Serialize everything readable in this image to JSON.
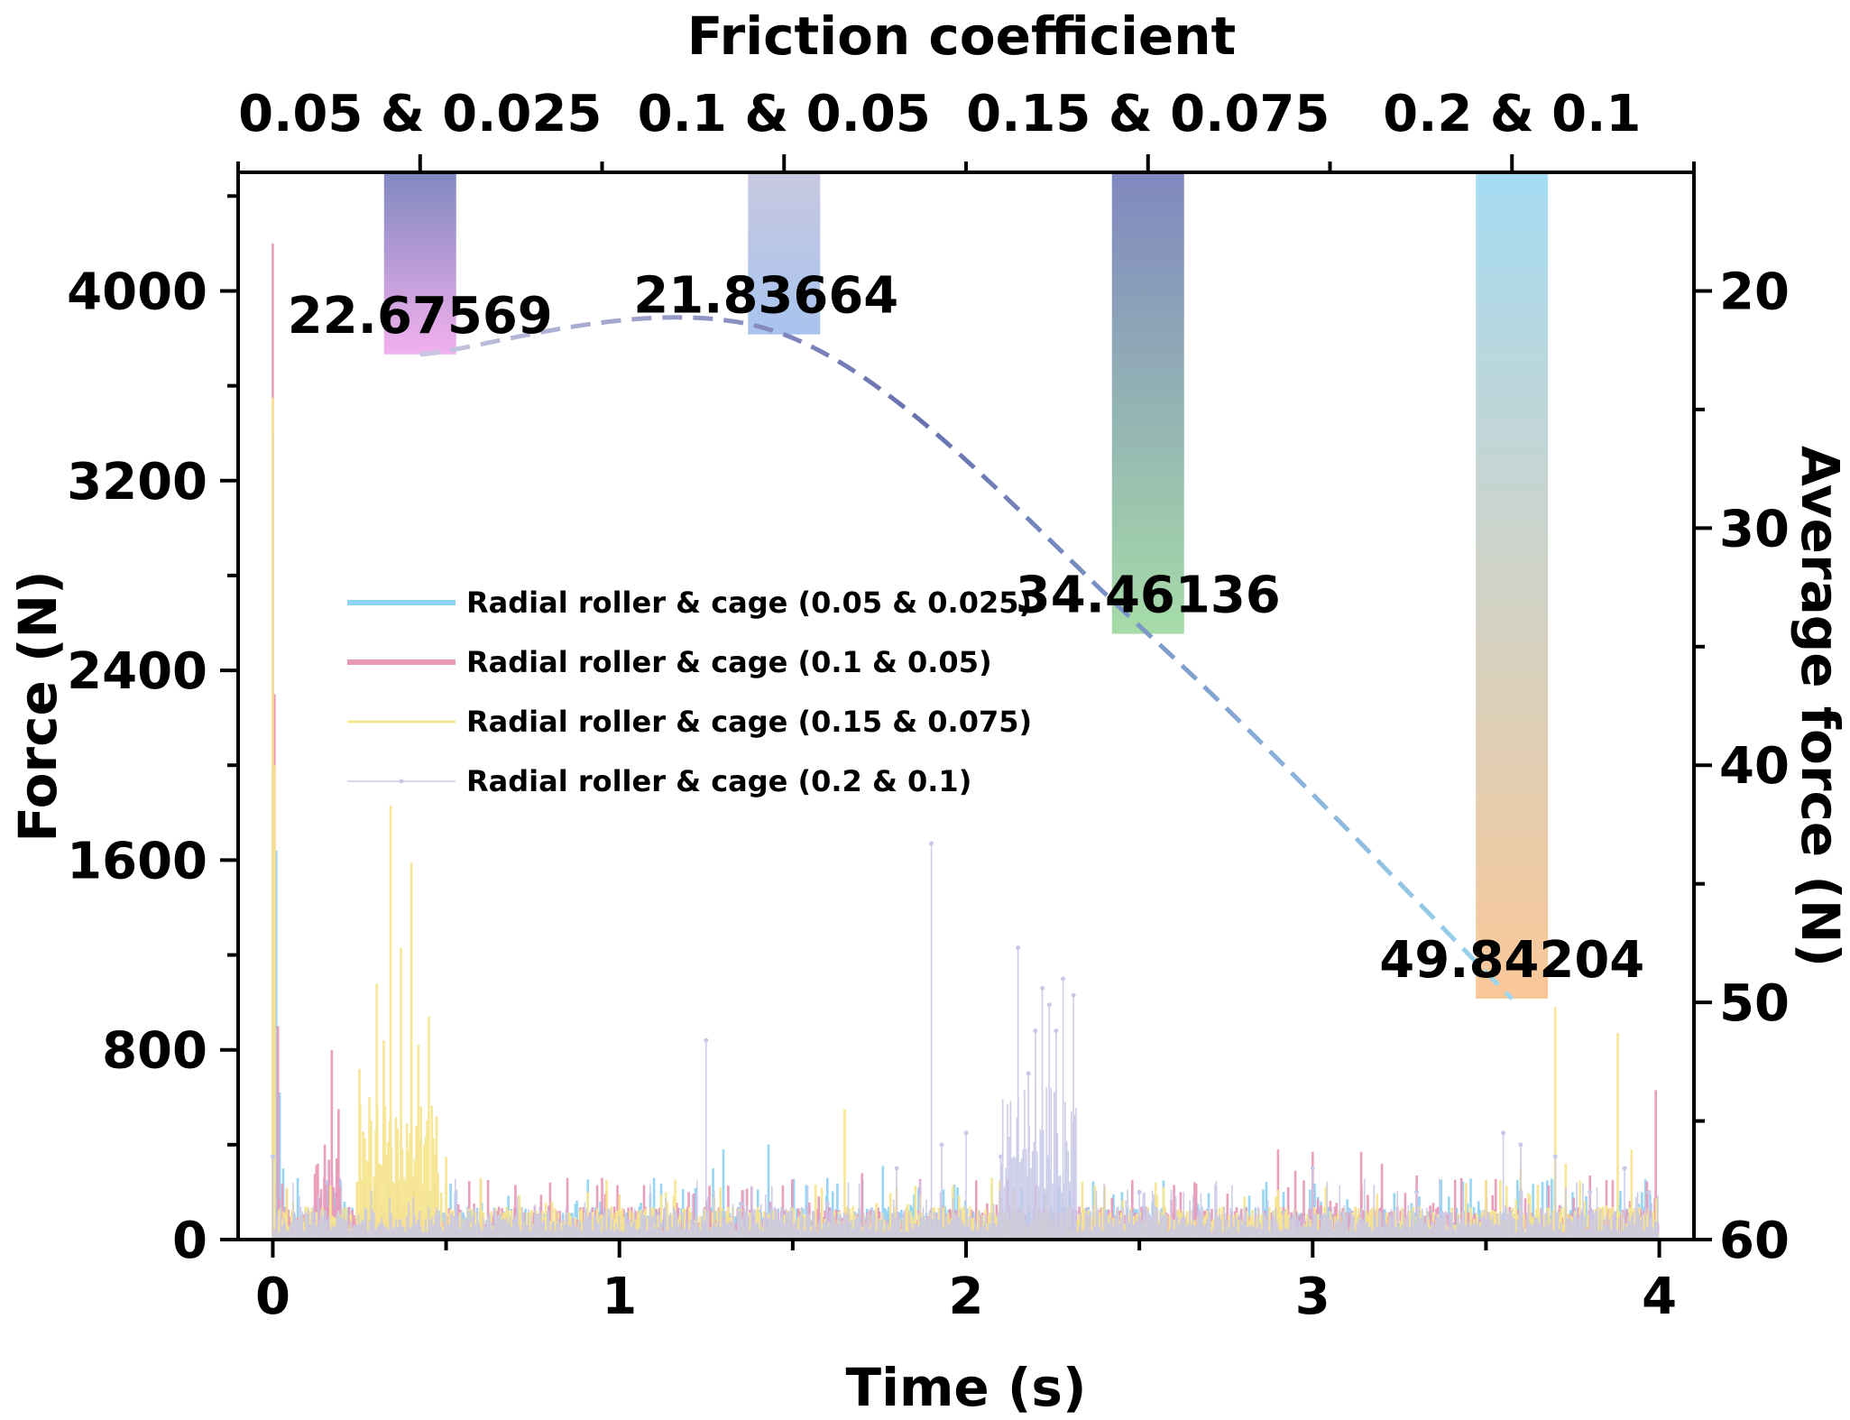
{
  "chart_data": {
    "type": "line",
    "top_axis": {
      "title": "Friction coefficient",
      "categories": [
        "0.05 & 0.025",
        "0.1 & 0.05",
        "0.15 & 0.075",
        "0.2 & 0.1"
      ]
    },
    "x_axis": {
      "title": "Time (s)",
      "range": [
        -0.1,
        4.1
      ],
      "ticks": [
        "0",
        "1",
        "2",
        "3",
        "4"
      ]
    },
    "y_axis_left": {
      "title": "Force (N)",
      "range": [
        0,
        4500
      ],
      "ticks": [
        "0",
        "800",
        "1600",
        "2400",
        "3200",
        "4000"
      ]
    },
    "y_axis_right": {
      "title": "Average force (N)",
      "range": [
        15,
        60
      ],
      "inverted": true,
      "ticks": [
        "20",
        "30",
        "40",
        "50",
        "60"
      ]
    },
    "average_bars": [
      {
        "category": "0.05 & 0.025",
        "value": 22.67569,
        "label": "22.67569",
        "color_top": "#8088c0",
        "color_bottom": "#f2b0ee"
      },
      {
        "category": "0.1 & 0.05",
        "value": 21.83664,
        "label": "21.83664",
        "color_top": "#c8c8e0",
        "color_bottom": "#a8c4ee"
      },
      {
        "category": "0.15 & 0.075",
        "value": 34.46136,
        "label": "34.46136",
        "color_top": "#8088c0",
        "color_bottom": "#a6dca8"
      },
      {
        "category": "0.2 & 0.1",
        "value": 49.84204,
        "label": "49.84204",
        "color_top": "#a6dcf4",
        "color_bottom": "#fac898"
      }
    ],
    "trend_line": {
      "style": "dashed",
      "colors": [
        "#c8c8e0",
        "#6870b0",
        "#9cd8f0"
      ]
    },
    "series": [
      {
        "name": "Radial roller & cage (0.05 & 0.025)",
        "color": "#8fd3f4",
        "peaks": [
          [
            0.0,
            3400
          ],
          [
            0.01,
            1640
          ],
          [
            0.02,
            620
          ],
          [
            0.03,
            300
          ],
          [
            1.1,
            260
          ],
          [
            1.27,
            300
          ],
          [
            1.3,
            380
          ],
          [
            1.43,
            400
          ],
          [
            1.5,
            240
          ],
          [
            1.6,
            260
          ],
          [
            1.76,
            310
          ],
          [
            1.85,
            190
          ],
          [
            2.3,
            200
          ],
          [
            2.45,
            200
          ],
          [
            3.1,
            170
          ],
          [
            3.75,
            200
          ],
          [
            3.95,
            200
          ]
        ]
      },
      {
        "name": "Radial roller & cage (0.1 & 0.05)",
        "color": "#e899b8",
        "peaks": [
          [
            0.0,
            4200
          ],
          [
            0.005,
            2300
          ],
          [
            0.015,
            900
          ],
          [
            0.13,
            320
          ],
          [
            0.15,
            400
          ],
          [
            0.17,
            800
          ],
          [
            0.19,
            550
          ],
          [
            0.3,
            100
          ],
          [
            0.6,
            250
          ],
          [
            0.7,
            230
          ],
          [
            0.8,
            240
          ],
          [
            0.85,
            260
          ],
          [
            0.95,
            260
          ],
          [
            1.0,
            190
          ],
          [
            1.2,
            200
          ],
          [
            1.6,
            150
          ],
          [
            1.7,
            280
          ],
          [
            2.1,
            180
          ],
          [
            2.4,
            220
          ],
          [
            2.6,
            230
          ],
          [
            2.9,
            380
          ],
          [
            2.95,
            290
          ],
          [
            3.0,
            370
          ],
          [
            3.14,
            370
          ],
          [
            3.2,
            320
          ],
          [
            3.3,
            270
          ],
          [
            3.5,
            250
          ],
          [
            3.6,
            220
          ],
          [
            3.8,
            270
          ],
          [
            3.99,
            630
          ]
        ]
      },
      {
        "name": "Radial roller & cage (0.15 & 0.075)",
        "color": "#f7e58f",
        "peaks": [
          [
            0.0,
            3550
          ],
          [
            0.005,
            2000
          ],
          [
            0.25,
            720
          ],
          [
            0.3,
            1080
          ],
          [
            0.32,
            840
          ],
          [
            0.34,
            1830
          ],
          [
            0.37,
            1230
          ],
          [
            0.4,
            1590
          ],
          [
            0.42,
            820
          ],
          [
            0.45,
            940
          ],
          [
            0.5,
            350
          ],
          [
            0.6,
            260
          ],
          [
            1.0,
            190
          ],
          [
            1.65,
            550
          ],
          [
            1.8,
            220
          ],
          [
            2.4,
            230
          ],
          [
            2.9,
            210
          ],
          [
            3.5,
            250
          ],
          [
            3.6,
            300
          ],
          [
            3.7,
            980
          ],
          [
            3.73,
            320
          ],
          [
            3.88,
            870
          ],
          [
            3.92,
            380
          ]
        ]
      },
      {
        "name": "Radial roller & cage (0.2 & 0.1)",
        "color": "#c8c8e8",
        "peaks": [
          [
            0.0,
            350
          ],
          [
            0.7,
            80
          ],
          [
            1.25,
            840
          ],
          [
            1.35,
            150
          ],
          [
            1.6,
            150
          ],
          [
            1.8,
            300
          ],
          [
            1.9,
            1670
          ],
          [
            1.93,
            400
          ],
          [
            2.0,
            450
          ],
          [
            2.1,
            350
          ],
          [
            2.15,
            1230
          ],
          [
            2.18,
            700
          ],
          [
            2.2,
            880
          ],
          [
            2.22,
            1060
          ],
          [
            2.24,
            990
          ],
          [
            2.26,
            880
          ],
          [
            2.28,
            1100
          ],
          [
            2.31,
            1030
          ],
          [
            2.5,
            200
          ],
          [
            3.0,
            300
          ],
          [
            3.3,
            200
          ],
          [
            3.55,
            450
          ],
          [
            3.6,
            400
          ],
          [
            3.7,
            350
          ],
          [
            3.8,
            200
          ],
          [
            3.9,
            300
          ],
          [
            3.97,
            200
          ]
        ]
      }
    ]
  }
}
